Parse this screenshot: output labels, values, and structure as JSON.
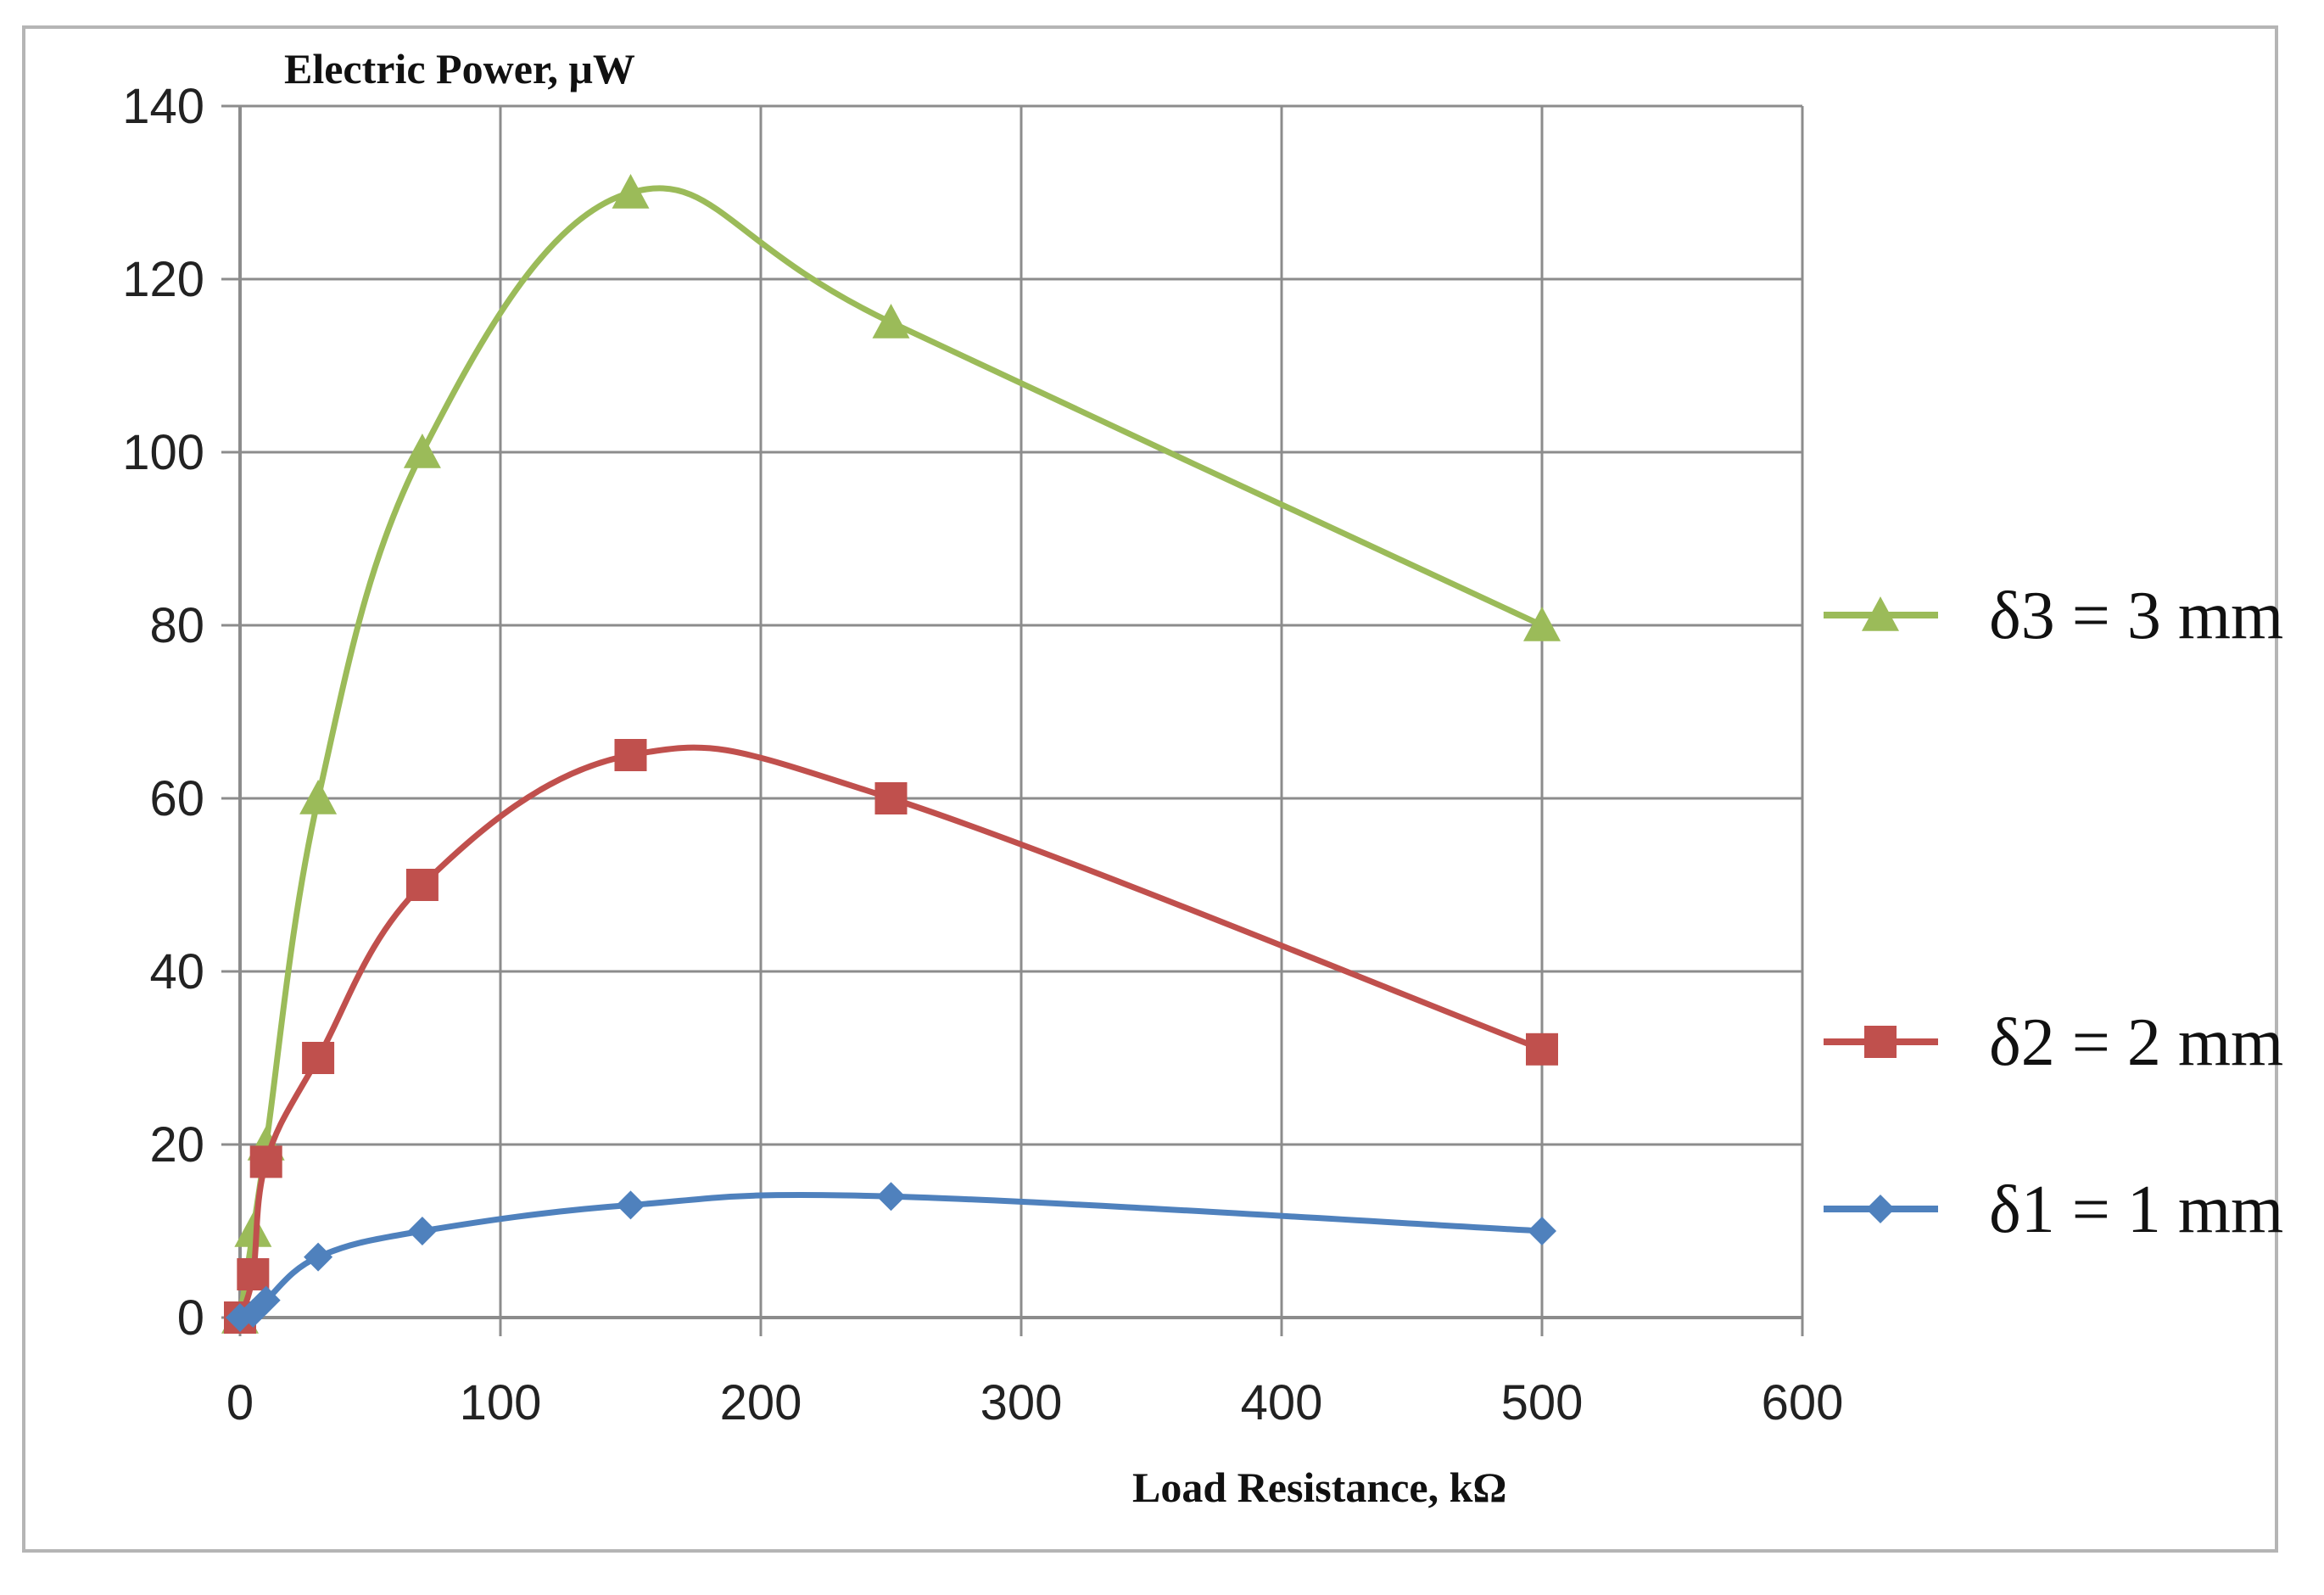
{
  "chart_data": {
    "type": "line",
    "title": "",
    "ylabel": "Electric Power, μW",
    "xlabel": "Load Resistance, kΩ",
    "xlim": [
      0,
      600
    ],
    "ylim": [
      0,
      140
    ],
    "x_ticks": [
      0,
      100,
      200,
      300,
      400,
      500,
      600
    ],
    "y_ticks": [
      0,
      20,
      40,
      60,
      80,
      100,
      120,
      140
    ],
    "grid": true,
    "legend_position": "right",
    "series": [
      {
        "name": "δ3 = 3 mm",
        "color": "#9BBB59",
        "marker": "triangle",
        "x": [
          0,
          5,
          10,
          30,
          70,
          150,
          250,
          500
        ],
        "y": [
          0,
          10,
          20,
          60,
          100,
          130,
          115,
          80
        ]
      },
      {
        "name": "δ2 = 2 mm",
        "color": "#C0504D",
        "marker": "square",
        "x": [
          0,
          5,
          10,
          30,
          70,
          150,
          250,
          500
        ],
        "y": [
          0,
          5,
          18,
          30,
          50,
          65,
          60,
          31
        ]
      },
      {
        "name": "δ1 = 1 mm",
        "color": "#4F81BD",
        "marker": "diamond",
        "x": [
          0,
          5,
          10,
          30,
          70,
          150,
          250,
          500
        ],
        "y": [
          0,
          0.5,
          2,
          7,
          10,
          13,
          14,
          10
        ]
      }
    ]
  }
}
